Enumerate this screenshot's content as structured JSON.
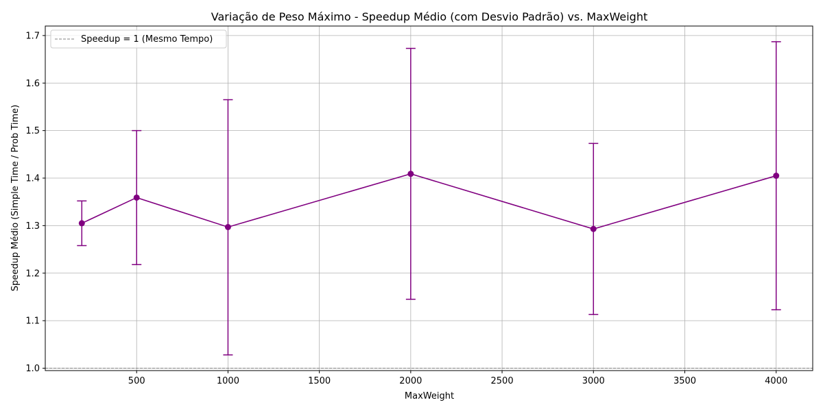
{
  "chart_data": {
    "type": "line",
    "title": "Variação de Peso Máximo - Speedup Médio (com Desvio Padrão) vs. MaxWeight",
    "xlabel": "MaxWeight",
    "ylabel": "Speedup Médio (Simple Time / Prob Time)",
    "xlim": [
      0,
      4200
    ],
    "ylim": [
      0.995,
      1.72
    ],
    "xticks": [
      500,
      1000,
      1500,
      2000,
      2500,
      3000,
      3500,
      4000
    ],
    "xtick_labels": [
      "500",
      "1000",
      "1500",
      "2000",
      "2500",
      "3000",
      "3500",
      "4000"
    ],
    "yticks": [
      1.0,
      1.1,
      1.2,
      1.3,
      1.4,
      1.5,
      1.6,
      1.7
    ],
    "ytick_labels": [
      "1.0",
      "1.1",
      "1.2",
      "1.3",
      "1.4",
      "1.5",
      "1.6",
      "1.7"
    ],
    "grid": true,
    "legend_position": "top-left",
    "series": [
      {
        "x": [
          200,
          500,
          1000,
          2000,
          3000,
          4000
        ],
        "y": [
          1.305,
          1.359,
          1.297,
          1.409,
          1.293,
          1.405
        ],
        "yerr_low": [
          1.258,
          1.218,
          1.028,
          1.145,
          1.113,
          1.123
        ],
        "yerr_high": [
          1.352,
          1.5,
          1.565,
          1.673,
          1.473,
          1.687
        ],
        "color": "#800080"
      }
    ],
    "reference_line": {
      "y": 1.0,
      "name": "Speedup = 1 (Mesmo Tempo)",
      "color": "#808080",
      "style": "dashed"
    }
  }
}
